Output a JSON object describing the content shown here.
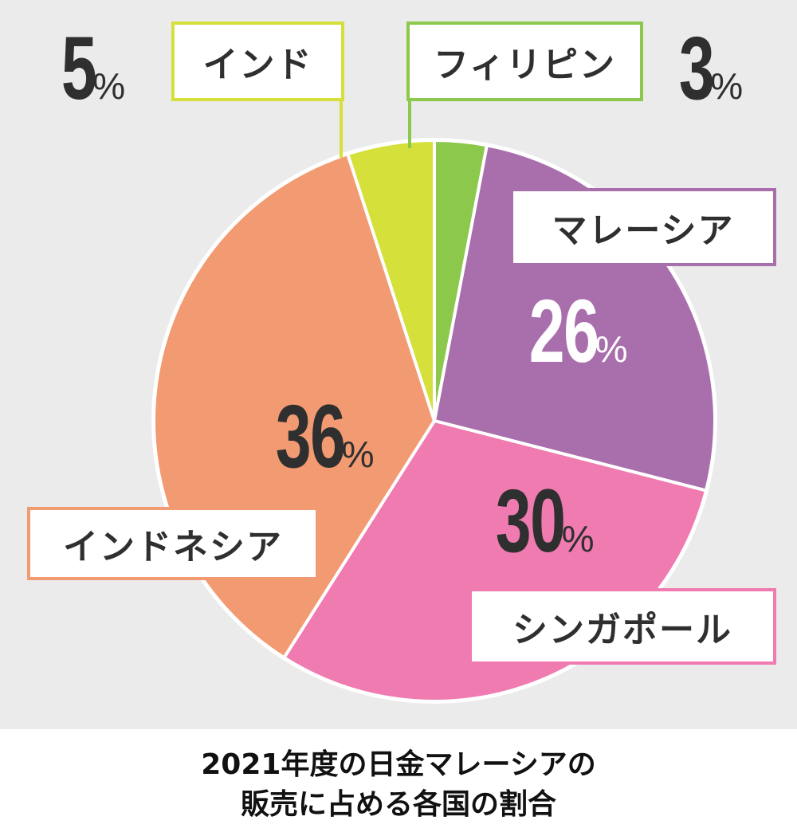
{
  "chart_data": {
    "type": "pie",
    "title_lines": [
      "2021年度の日金マレーシアの",
      "販売に占める各国の割合"
    ],
    "slices": [
      {
        "label": "フィリピン",
        "value": 3,
        "value_text": "3",
        "unit": "%",
        "color": "#8cc84b"
      },
      {
        "label": "マレーシア",
        "value": 26,
        "value_text": "26",
        "unit": "%",
        "color": "#a86fac"
      },
      {
        "label": "シンガポール",
        "value": 30,
        "value_text": "30",
        "unit": "%",
        "color": "#ef7bb0"
      },
      {
        "label": "インドネシア",
        "value": 36,
        "value_text": "36",
        "unit": "%",
        "color": "#f29a72"
      },
      {
        "label": "インド",
        "value": 5,
        "value_text": "5",
        "unit": "%",
        "color": "#d5e03a"
      }
    ],
    "background": "#ebebeb"
  }
}
